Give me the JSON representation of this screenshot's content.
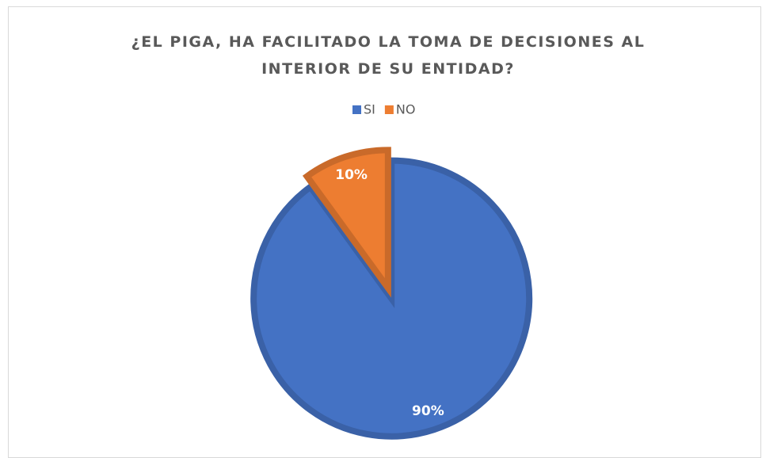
{
  "chart_data": {
    "type": "pie",
    "title": "¿EL PIGA, HA FACILITADO LA TOMA DE DECISIONES AL INTERIOR DE SU ENTIDAD?",
    "categories": [
      "SI",
      "NO"
    ],
    "values": [
      90,
      10
    ],
    "value_labels": [
      "90%",
      "10%"
    ],
    "colors": [
      "#4472c4",
      "#ed7d31"
    ],
    "legend": "top"
  }
}
